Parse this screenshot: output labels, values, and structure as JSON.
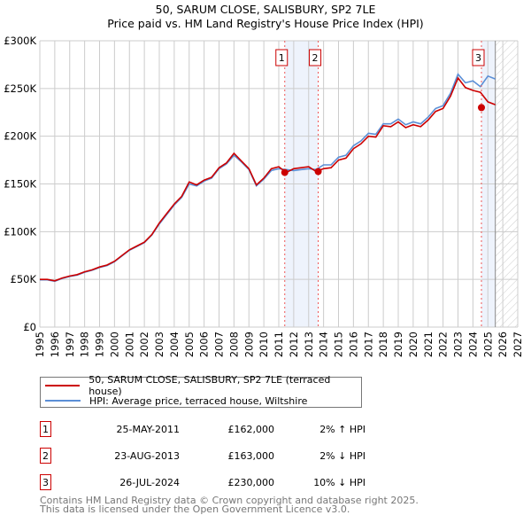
{
  "chart_data": {
    "type": "line",
    "title": "50, SARUM CLOSE, SALISBURY, SP2 7LE",
    "subtitle": "Price paid vs. HM Land Registry's House Price Index (HPI)",
    "xlim": [
      1995,
      2027
    ],
    "ylim": [
      0,
      300000
    ],
    "x_ticks": [
      "1995",
      "1996",
      "1997",
      "1998",
      "1999",
      "2000",
      "2001",
      "2002",
      "2003",
      "2004",
      "2005",
      "2006",
      "2007",
      "2008",
      "2009",
      "2010",
      "2011",
      "2012",
      "2013",
      "2014",
      "2015",
      "2016",
      "2017",
      "2018",
      "2019",
      "2020",
      "2021",
      "2022",
      "2023",
      "2024",
      "2025",
      "2026",
      "2027"
    ],
    "y_ticks": [
      {
        "v": 0,
        "label": "£0"
      },
      {
        "v": 50000,
        "label": "£50K"
      },
      {
        "v": 100000,
        "label": "£100K"
      },
      {
        "v": 150000,
        "label": "£150K"
      },
      {
        "v": 200000,
        "label": "£200K"
      },
      {
        "v": 250000,
        "label": "£250K"
      },
      {
        "v": 300000,
        "label": "£300K"
      }
    ],
    "grid": true,
    "x": [
      1995,
      1995.5,
      1996,
      1996.5,
      1997,
      1997.5,
      1998,
      1998.5,
      1999,
      1999.5,
      2000,
      2000.5,
      2001,
      2001.5,
      2002,
      2002.5,
      2003,
      2003.5,
      2004,
      2004.5,
      2005,
      2005.5,
      2006,
      2006.5,
      2007,
      2007.5,
      2008,
      2008.5,
      2009,
      2009.5,
      2010,
      2010.5,
      2011,
      2011.5,
      2012,
      2012.5,
      2013,
      2013.5,
      2014,
      2014.5,
      2015,
      2015.5,
      2016,
      2016.5,
      2017,
      2017.5,
      2018,
      2018.5,
      2019,
      2019.5,
      2020,
      2020.5,
      2021,
      2021.5,
      2022,
      2022.5,
      2023,
      2023.5,
      2024,
      2024.5,
      2025,
      2025.5
    ],
    "series": [
      {
        "name": "50, SARUM CLOSE, SALISBURY, SP2 7LE (terraced house)",
        "color": "#cc0000",
        "values": [
          50000,
          50000,
          48500,
          51500,
          53500,
          55000,
          58000,
          60000,
          63000,
          65000,
          69000,
          75000,
          81000,
          85000,
          89000,
          97000,
          109000,
          119000,
          129000,
          137000,
          152000,
          149000,
          154000,
          157000,
          167000,
          172000,
          182000,
          174000,
          166000,
          149000,
          156000,
          166000,
          168000,
          162000,
          166000,
          167000,
          168000,
          163000,
          166000,
          167000,
          175000,
          177000,
          187000,
          192000,
          200000,
          199000,
          211000,
          210000,
          215000,
          209000,
          212000,
          210000,
          217000,
          226000,
          229000,
          242000,
          261000,
          251000,
          248000,
          246000,
          236000,
          233000
        ]
      },
      {
        "name": "HPI: Average price, terraced house, Wiltshire",
        "color": "#5b8fd6",
        "values": [
          49500,
          49500,
          48000,
          51000,
          53000,
          54500,
          57500,
          59500,
          62500,
          64500,
          68500,
          74500,
          80500,
          84500,
          88500,
          96500,
          108000,
          118000,
          128000,
          136000,
          150000,
          148000,
          153000,
          156000,
          166000,
          171000,
          180000,
          173000,
          165000,
          148000,
          155000,
          164000,
          166000,
          165000,
          164000,
          165000,
          166000,
          165000,
          170000,
          170000,
          178000,
          180000,
          190000,
          195000,
          203000,
          202000,
          213000,
          213000,
          218000,
          212000,
          215000,
          213000,
          220000,
          229000,
          232000,
          245000,
          265000,
          256000,
          258000,
          252000,
          263000,
          260000
        ]
      }
    ],
    "sales": [
      {
        "id": "1",
        "x": 2011.4,
        "value": 162000,
        "date": "25-MAY-2011",
        "price": "£162,000",
        "hpi": "2% ↑ HPI"
      },
      {
        "id": "2",
        "x": 2013.64,
        "value": 163000,
        "date": "23-AUG-2013",
        "price": "£163,000",
        "hpi": "2% ↓ HPI"
      },
      {
        "id": "3",
        "x": 2024.57,
        "value": 230000,
        "date": "26-JUL-2024",
        "price": "£230,000",
        "hpi": "10% ↓ HPI"
      }
    ],
    "legend_placement": "bottom"
  },
  "footer": [
    "Contains HM Land Registry data © Crown copyright and database right 2025.",
    "This data is licensed under the Open Government Licence v3.0."
  ]
}
